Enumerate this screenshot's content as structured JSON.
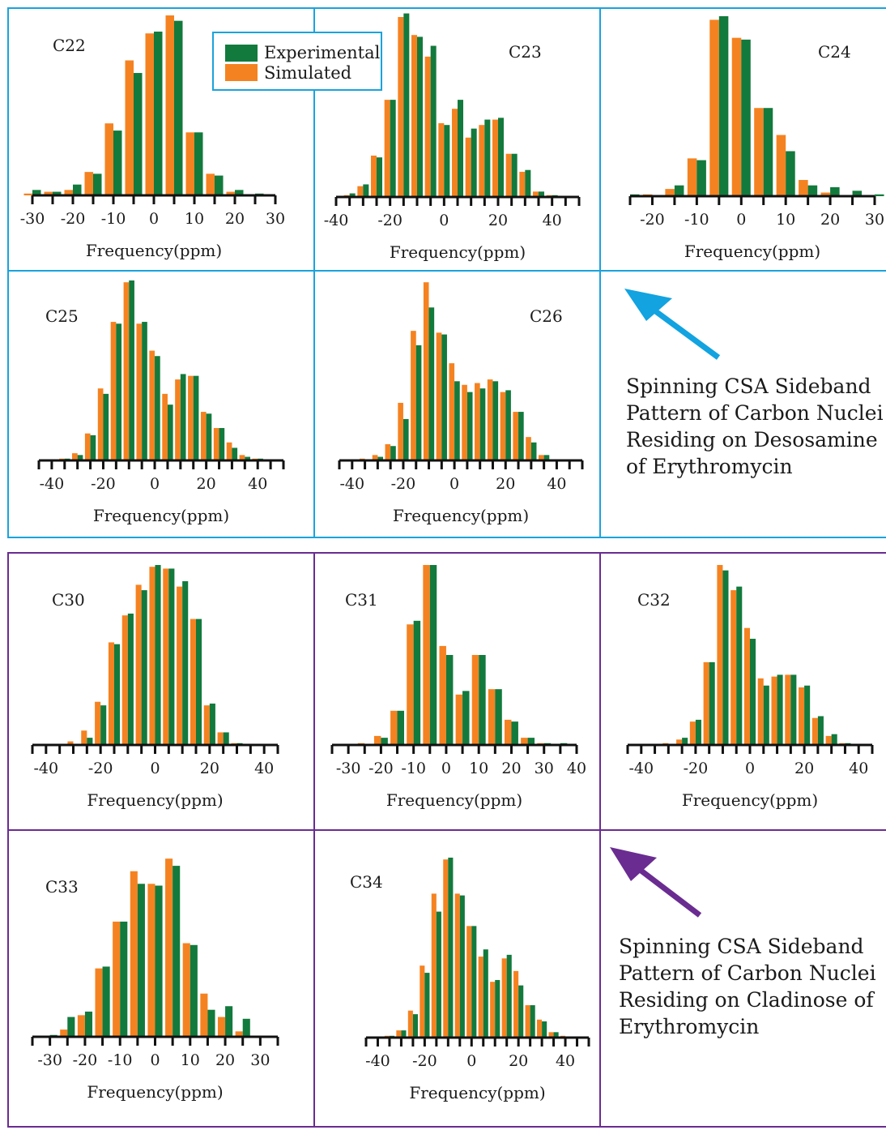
{
  "legend": {
    "experimental": "Experimental",
    "simulated": "Simulated"
  },
  "colors": {
    "experimental": "#127a3c",
    "simulated": "#f58220",
    "frame_top": "#1aa3dc",
    "frame_bottom": "#6a2c91",
    "arrow_top": "#12a3e0",
    "arrow_bottom": "#6a2c91"
  },
  "descriptions": {
    "desosamine": "Spinning CSA Sideband Pattern of Carbon Nuclei Residing on Desosamine of Erythromycin",
    "cladinose": "Spinning CSA Sideband Pattern of Carbon Nuclei Residing on Cladinose of Erythromycin"
  },
  "chart_data": [
    {
      "type": "bar",
      "title": "C22",
      "xlabel": "Frequency(ppm)",
      "xlim": [
        -30,
        30
      ],
      "xticks": [
        -30,
        -20,
        -10,
        0,
        10,
        20,
        30
      ],
      "x": [
        -30,
        -25,
        -20,
        -15,
        -10,
        -5,
        0,
        5,
        10,
        15,
        20,
        25,
        30
      ],
      "series": [
        {
          "name": "Simulated",
          "values": [
            1,
            2,
            3,
            13,
            40,
            75,
            90,
            100,
            35,
            12,
            2,
            0,
            0
          ]
        },
        {
          "name": "Experimental",
          "values": [
            3,
            2,
            6,
            12,
            36,
            68,
            91,
            97,
            35,
            11,
            3,
            1,
            0
          ]
        }
      ]
    },
    {
      "type": "bar",
      "title": "C23",
      "xlabel": "Frequency(ppm)",
      "xlim": [
        -40,
        50
      ],
      "xticks": [
        -40,
        -20,
        0,
        20,
        40
      ],
      "x": [
        -35,
        -30,
        -25,
        -20,
        -15,
        -10,
        -5,
        0,
        5,
        10,
        15,
        20,
        25,
        30,
        35,
        40
      ],
      "series": [
        {
          "name": "Simulated",
          "values": [
            1,
            6,
            23,
            54,
            100,
            90,
            78,
            41,
            49,
            33,
            40,
            43,
            24,
            14,
            3,
            1
          ]
        },
        {
          "name": "Experimental",
          "values": [
            2,
            7,
            22,
            54,
            102,
            89,
            84,
            40,
            54,
            38,
            43,
            44,
            24,
            15,
            3,
            1
          ]
        }
      ]
    },
    {
      "type": "bar",
      "title": "C24",
      "xlabel": "Frequency(ppm)",
      "xlim": [
        -25,
        30
      ],
      "xticks": [
        -20,
        -10,
        0,
        10,
        20,
        30
      ],
      "x": [
        -25,
        -20,
        -15,
        -10,
        -5,
        0,
        5,
        10,
        15,
        20,
        25,
        30
      ],
      "series": [
        {
          "name": "Simulated",
          "values": [
            0,
            1,
            4,
            21,
            98,
            88,
            49,
            34,
            9,
            2,
            0,
            0
          ]
        },
        {
          "name": "Experimental",
          "values": [
            1,
            0,
            6,
            20,
            100,
            87,
            49,
            25,
            6,
            5,
            3,
            1
          ]
        }
      ]
    },
    {
      "type": "bar",
      "title": "C25",
      "xlabel": "Frequency(ppm)",
      "xlim": [
        -45,
        50
      ],
      "xticks": [
        -40,
        -20,
        0,
        20,
        40
      ],
      "x": [
        -40,
        -35,
        -30,
        -25,
        -20,
        -15,
        -10,
        -5,
        0,
        5,
        10,
        15,
        20,
        25,
        30,
        35,
        40
      ],
      "series": [
        {
          "name": "Simulated",
          "values": [
            0,
            1,
            4,
            15,
            40,
            77,
            99,
            76,
            61,
            37,
            45,
            47,
            27,
            18,
            10,
            3,
            1
          ]
        },
        {
          "name": "Experimental",
          "values": [
            0,
            1,
            3,
            14,
            37,
            76,
            100,
            77,
            58,
            31,
            48,
            47,
            26,
            18,
            7,
            2,
            1
          ]
        }
      ]
    },
    {
      "type": "bar",
      "title": "C26",
      "xlabel": "Frequency(ppm)",
      "xlim": [
        -45,
        50
      ],
      "xticks": [
        -40,
        -20,
        0,
        20,
        40
      ],
      "x": [
        -40,
        -35,
        -30,
        -25,
        -20,
        -15,
        -10,
        -5,
        0,
        5,
        10,
        15,
        20,
        25,
        30,
        35,
        40
      ],
      "series": [
        {
          "name": "Simulated",
          "values": [
            0,
            1,
            3,
            9,
            32,
            72,
            99,
            71,
            54,
            42,
            43,
            45,
            38,
            27,
            13,
            3,
            0
          ]
        },
        {
          "name": "Experimental",
          "values": [
            0,
            0,
            2,
            8,
            23,
            64,
            85,
            70,
            44,
            38,
            40,
            44,
            39,
            27,
            10,
            3,
            0
          ]
        }
      ]
    },
    {
      "type": "bar",
      "title": "C30",
      "xlabel": "Frequency(ppm)",
      "xlim": [
        -45,
        45
      ],
      "xticks": [
        -40,
        -20,
        0,
        20,
        40
      ],
      "x": [
        -40,
        -35,
        -30,
        -25,
        -20,
        -15,
        -10,
        -5,
        0,
        5,
        10,
        15,
        20,
        25,
        30,
        35,
        40
      ],
      "series": [
        {
          "name": "Simulated",
          "values": [
            0,
            0,
            2,
            8,
            24,
            57,
            72,
            89,
            99,
            98,
            88,
            70,
            22,
            7,
            1,
            0,
            0
          ]
        },
        {
          "name": "Experimental",
          "values": [
            0,
            0,
            0,
            4,
            22,
            56,
            73,
            86,
            100,
            98,
            91,
            70,
            23,
            7,
            1,
            0,
            0
          ]
        }
      ]
    },
    {
      "type": "bar",
      "title": "C31",
      "xlabel": "Frequency(ppm)",
      "xlim": [
        -35,
        40
      ],
      "xticks": [
        -30,
        -20,
        -10,
        0,
        10,
        20,
        30,
        40
      ],
      "x": [
        -30,
        -25,
        -20,
        -15,
        -10,
        -5,
        0,
        5,
        10,
        15,
        20,
        25,
        30,
        35
      ],
      "series": [
        {
          "name": "Simulated",
          "values": [
            0,
            1,
            5,
            19,
            67,
            100,
            55,
            28,
            50,
            31,
            14,
            4,
            1,
            0
          ]
        },
        {
          "name": "Experimental",
          "values": [
            0,
            0,
            4,
            19,
            69,
            100,
            50,
            30,
            50,
            31,
            13,
            4,
            1,
            1
          ]
        }
      ]
    },
    {
      "type": "bar",
      "title": "C32",
      "xlabel": "Frequency(ppm)",
      "xlim": [
        -45,
        45
      ],
      "xticks": [
        -40,
        -20,
        0,
        20,
        40
      ],
      "x": [
        -40,
        -35,
        -30,
        -25,
        -20,
        -15,
        -10,
        -5,
        0,
        5,
        10,
        15,
        20,
        25,
        30,
        35,
        40
      ],
      "series": [
        {
          "name": "Simulated",
          "values": [
            0,
            0,
            1,
            3,
            13,
            46,
            100,
            86,
            65,
            37,
            38,
            39,
            32,
            15,
            5,
            1,
            0
          ]
        },
        {
          "name": "Experimental",
          "values": [
            0,
            0,
            0,
            4,
            14,
            46,
            97,
            88,
            59,
            33,
            39,
            39,
            33,
            16,
            6,
            1,
            0
          ]
        }
      ]
    },
    {
      "type": "bar",
      "title": "C33",
      "xlabel": "Frequency(ppm)",
      "xlim": [
        -35,
        35
      ],
      "xticks": [
        -30,
        -20,
        -10,
        0,
        10,
        20,
        30
      ],
      "x": [
        -35,
        -30,
        -25,
        -20,
        -15,
        -10,
        -5,
        0,
        5,
        10,
        15,
        20,
        25,
        30
      ],
      "series": [
        {
          "name": "Simulated",
          "values": [
            0,
            0,
            4,
            12,
            38,
            64,
            92,
            85,
            99,
            52,
            24,
            11,
            3,
            0
          ]
        },
        {
          "name": "Experimental",
          "values": [
            0,
            1,
            11,
            14,
            39,
            64,
            85,
            84,
            95,
            51,
            15,
            17,
            10,
            0
          ]
        }
      ]
    },
    {
      "type": "bar",
      "title": "C34",
      "xlabel": "Frequency(ppm)",
      "xlim": [
        -45,
        50
      ],
      "xticks": [
        -40,
        -20,
        0,
        20,
        40
      ],
      "x": [
        -40,
        -35,
        -30,
        -25,
        -20,
        -15,
        -10,
        -5,
        0,
        5,
        10,
        15,
        20,
        25,
        30,
        35,
        40
      ],
      "series": [
        {
          "name": "Simulated",
          "values": [
            0,
            1,
            4,
            15,
            40,
            80,
            99,
            80,
            62,
            45,
            31,
            44,
            37,
            18,
            10,
            3,
            1
          ]
        },
        {
          "name": "Experimental",
          "values": [
            0,
            1,
            4,
            13,
            36,
            70,
            100,
            79,
            62,
            49,
            32,
            46,
            29,
            18,
            9,
            3,
            0
          ]
        }
      ]
    }
  ]
}
